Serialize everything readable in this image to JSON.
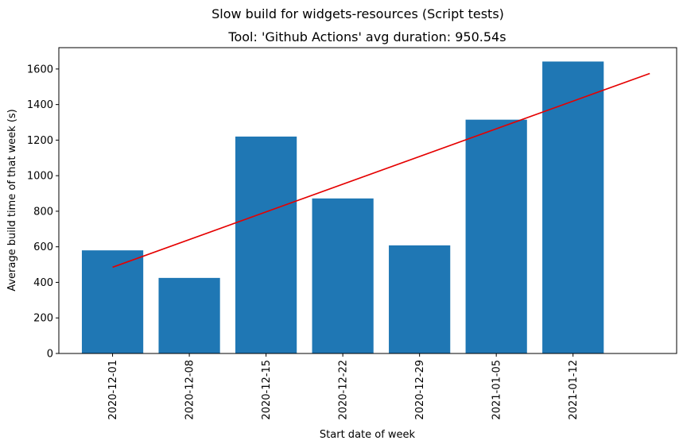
{
  "figure": {
    "suptitle": "Slow build for widgets-resources (Script tests)"
  },
  "chart_data": {
    "type": "bar",
    "title": "Tool: 'Github Actions' avg duration: 950.54s",
    "xlabel": "Start date of week",
    "ylabel": "Average build time of that week (s)",
    "categories": [
      "2020-12-01",
      "2020-12-08",
      "2020-12-15",
      "2020-12-22",
      "2020-12-29",
      "2021-01-05",
      "2021-01-12"
    ],
    "series": [
      {
        "values": [
          580,
          425,
          1220,
          872,
          608,
          1315,
          1642
        ],
        "color": "#1f77b4"
      }
    ],
    "trendline": {
      "color": "#e50000",
      "x_start": 0,
      "x_end": 7,
      "y_start": 485,
      "y_end": 1575
    },
    "ylim": [
      0,
      1720
    ],
    "yticks": [
      0,
      200,
      400,
      600,
      800,
      1000,
      1200,
      1400,
      1600
    ],
    "xlim": [
      -0.7,
      7.35
    ],
    "grid": false,
    "legend": false
  }
}
